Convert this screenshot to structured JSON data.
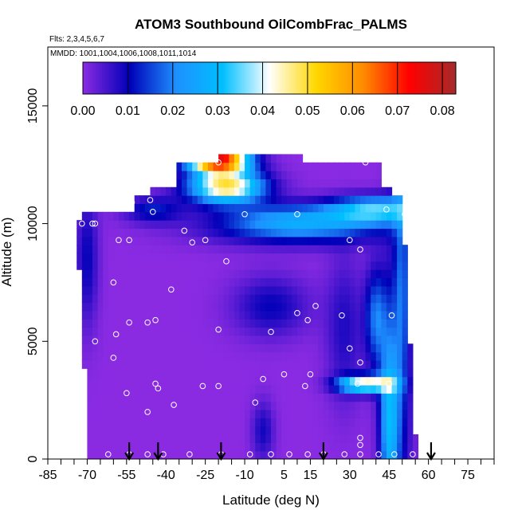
{
  "chart_data": {
    "type": "heatmap",
    "title": "ATOM3 Southbound OilCombFrac_PALMS",
    "flights_note": "Flts: 2,3,4,5,6,7",
    "dates_note": "MMDD: 1001,1004,1006,1008,1011,1014",
    "xlabel": "Latitude (deg N)",
    "ylabel": "Altitude (m)",
    "xlim": [
      -85,
      85
    ],
    "ylim": [
      0,
      17500
    ],
    "x_ticks": [
      "-85",
      "-70",
      "-55",
      "-40",
      "-25",
      "-10",
      "5",
      "15",
      "30",
      "45",
      "60",
      "75"
    ],
    "y_ticks": [
      "0",
      "5000",
      "10000",
      "15000"
    ],
    "colorbar": {
      "min": 0.0,
      "max": 0.083,
      "labels": [
        "0.00",
        "0.01",
        "0.02",
        "0.03",
        "0.04",
        "0.05",
        "0.06",
        "0.07",
        "0.08"
      ],
      "colors": [
        "#8a2be2",
        "#0000b8",
        "#1e90ff",
        "#00bfff",
        "#ffffff",
        "#ffd700",
        "#ff8c00",
        "#ff0000",
        "#a52a2a"
      ]
    },
    "grid": false,
    "arrows_latitude": [
      -54,
      -43,
      -19,
      20,
      61
    ],
    "profile_points": [
      {
        "lat": -72,
        "alt": 10000
      },
      {
        "lat": -68,
        "alt": 10000
      },
      {
        "lat": -67,
        "alt": 10000
      },
      {
        "lat": -58,
        "alt": 9300
      },
      {
        "lat": -54,
        "alt": 9300
      },
      {
        "lat": -53,
        "alt": 10900
      },
      {
        "lat": -46,
        "alt": 11000
      },
      {
        "lat": -45,
        "alt": 10500
      },
      {
        "lat": -33,
        "alt": 9700
      },
      {
        "lat": -30,
        "alt": 9200
      },
      {
        "lat": -25,
        "alt": 9300
      },
      {
        "lat": -20,
        "alt": 12600
      },
      {
        "lat": -17,
        "alt": 8400
      },
      {
        "lat": -10,
        "alt": 10400
      },
      {
        "lat": 10,
        "alt": 10400
      },
      {
        "lat": 30,
        "alt": 9300
      },
      {
        "lat": 34,
        "alt": 8900
      },
      {
        "lat": 36,
        "alt": 12600
      },
      {
        "lat": 44,
        "alt": 10600
      },
      {
        "lat": 51,
        "alt": 10400
      },
      {
        "lat": -60,
        "alt": 7500
      },
      {
        "lat": -38,
        "alt": 7200
      },
      {
        "lat": 10,
        "alt": 6200
      },
      {
        "lat": 17,
        "alt": 6500
      },
      {
        "lat": 14,
        "alt": 5900
      },
      {
        "lat": 27,
        "alt": 6100
      },
      {
        "lat": 46,
        "alt": 6100
      },
      {
        "lat": -67,
        "alt": 5000
      },
      {
        "lat": -59,
        "alt": 5300
      },
      {
        "lat": -54,
        "alt": 5800
      },
      {
        "lat": -47,
        "alt": 5800
      },
      {
        "lat": -44,
        "alt": 5900
      },
      {
        "lat": -20,
        "alt": 5500
      },
      {
        "lat": 0,
        "alt": 5400
      },
      {
        "lat": 30,
        "alt": 4700
      },
      {
        "lat": 34,
        "alt": 4100
      },
      {
        "lat": -60,
        "alt": 4300
      },
      {
        "lat": -55,
        "alt": 2800
      },
      {
        "lat": -44,
        "alt": 3200
      },
      {
        "lat": -43,
        "alt": 3000
      },
      {
        "lat": -37,
        "alt": 2300
      },
      {
        "lat": -26,
        "alt": 3100
      },
      {
        "lat": -20,
        "alt": 3100
      },
      {
        "lat": -3,
        "alt": 3400
      },
      {
        "lat": 5,
        "alt": 3600
      },
      {
        "lat": 15,
        "alt": 3600
      },
      {
        "lat": 13,
        "alt": 3100
      },
      {
        "lat": 33,
        "alt": 3200
      },
      {
        "lat": 35,
        "alt": 3300
      },
      {
        "lat": 45,
        "alt": 3200
      },
      {
        "lat": -47,
        "alt": 2000
      },
      {
        "lat": -6,
        "alt": 2400
      },
      {
        "lat": 34,
        "alt": 900
      },
      {
        "lat": 34,
        "alt": 600
      },
      {
        "lat": -73,
        "alt": 200
      },
      {
        "lat": -62,
        "alt": 200
      },
      {
        "lat": -54,
        "alt": 200
      },
      {
        "lat": -47,
        "alt": 200
      },
      {
        "lat": -41,
        "alt": 200
      },
      {
        "lat": -31,
        "alt": 200
      },
      {
        "lat": -19,
        "alt": 200
      },
      {
        "lat": -8,
        "alt": 200
      },
      {
        "lat": 0,
        "alt": 200
      },
      {
        "lat": 7,
        "alt": 200
      },
      {
        "lat": 14,
        "alt": 200
      },
      {
        "lat": 20,
        "alt": 200
      },
      {
        "lat": 28,
        "alt": 200
      },
      {
        "lat": 34,
        "alt": 200
      },
      {
        "lat": 41,
        "alt": 200
      },
      {
        "lat": 47,
        "alt": 200
      },
      {
        "lat": 54,
        "alt": 200
      }
    ]
  }
}
